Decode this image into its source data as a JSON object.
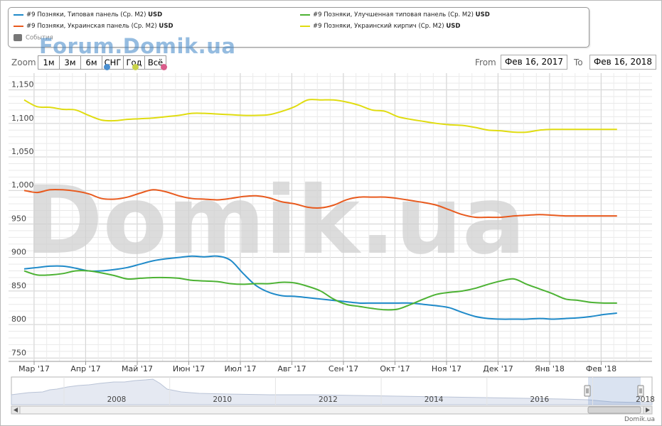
{
  "legend": {
    "items": [
      {
        "label": "#9 Позняки, Типовая панель (Ср. М2)",
        "unit": "USD",
        "color": "#1f8ac9"
      },
      {
        "label": "#9 Позняки, Улучшенная типовая панель (Ср. М2)",
        "unit": "USD",
        "color": "#4cb233"
      },
      {
        "label": "#9 Позняки, Украинская панель (Ср. М2)",
        "unit": "USD",
        "color": "#e85a1e"
      },
      {
        "label": "#9 Позняки, Украинский кирпич (Ср. М2)",
        "unit": "USD",
        "color": "#e0dc10"
      }
    ],
    "events_label": "События"
  },
  "watermark_top": "Forum.Domik.ua",
  "watermark_big": "Domik.ua",
  "zoom": {
    "label": "Zoom",
    "buttons": [
      "1м",
      "3м",
      "6м",
      "СНГ",
      "Год",
      "Всё"
    ]
  },
  "range": {
    "from_label": "From",
    "from_value": "Фев 16, 2017",
    "to_label": "To",
    "to_value": "Фев 16, 2018"
  },
  "credit": "Domik.ua",
  "chart_data": {
    "type": "line",
    "ylim": [
      745,
      1175
    ],
    "yticks": [
      750,
      800,
      850,
      900,
      950,
      1000,
      1050,
      1100,
      1150
    ],
    "ytick_labels": [
      "750",
      "800",
      "850",
      "900",
      "950",
      "1,000",
      "1,050",
      "1,100",
      "1,150"
    ],
    "x_labels": [
      "Мар '17",
      "Апр '17",
      "Май '17",
      "Июн '17",
      "Июл '17",
      "Авг '17",
      "Сен '17",
      "Окт '17",
      "Ноя '17",
      "Дек '17",
      "Янв '18",
      "Фев '18"
    ],
    "grid": true,
    "x": [
      0,
      0.25,
      0.5,
      0.75,
      1,
      1.25,
      1.5,
      1.75,
      2,
      2.25,
      2.5,
      2.75,
      3,
      3.25,
      3.5,
      3.75,
      4,
      4.25,
      4.5,
      4.75,
      5,
      5.25,
      5.5,
      5.75,
      6,
      6.25,
      6.5,
      6.75,
      7,
      7.25,
      7.5,
      7.75,
      8,
      8.25,
      8.5,
      8.75,
      9,
      9.25,
      9.5,
      9.75,
      10,
      10.25,
      10.5,
      10.75,
      11,
      11.25,
      11.5
    ],
    "series": [
      {
        "name": "#9 Позняки, Украинский кирпич (Ср. М2)",
        "color": "#e0dc10",
        "values": [
          1135,
          1125,
          1124,
          1121,
          1120,
          1112,
          1105,
          1104,
          1106,
          1107,
          1108,
          1110,
          1112,
          1115,
          1115,
          1114,
          1113,
          1112,
          1112,
          1113,
          1118,
          1125,
          1135,
          1135,
          1135,
          1132,
          1127,
          1120,
          1118,
          1110,
          1106,
          1103,
          1100,
          1098,
          1097,
          1094,
          1090,
          1089,
          1087,
          1087,
          1090,
          1091,
          1091,
          1091,
          1091,
          1091,
          1091
        ]
      },
      {
        "name": "#9 Позняки, Украинская панель (Ср. М2)",
        "color": "#e85a1e",
        "values": [
          1000,
          997,
          1001,
          1001,
          999,
          995,
          988,
          987,
          990,
          996,
          1001,
          998,
          992,
          988,
          987,
          986,
          988,
          991,
          992,
          989,
          983,
          980,
          975,
          974,
          978,
          986,
          990,
          990,
          990,
          988,
          985,
          982,
          978,
          971,
          964,
          960,
          960,
          960,
          962,
          963,
          964,
          963,
          962,
          962,
          962,
          962,
          962
        ]
      },
      {
        "name": "#9 Позняки, Типовая панель (Ср. М2)",
        "color": "#1f8ac9",
        "values": [
          883,
          885,
          887,
          887,
          884,
          880,
          880,
          882,
          885,
          890,
          895,
          898,
          900,
          902,
          901,
          902,
          896,
          876,
          858,
          848,
          843,
          842,
          840,
          838,
          836,
          834,
          832,
          832,
          832,
          832,
          832,
          830,
          828,
          825,
          818,
          812,
          809,
          808,
          808,
          808,
          809,
          808,
          809,
          810,
          812,
          815,
          817
        ]
      },
      {
        "name": "#9 Позняки, Улучшенная типовая панель (Ср. М2)",
        "color": "#4cb233",
        "values": [
          880,
          874,
          874,
          876,
          880,
          880,
          877,
          873,
          868,
          869,
          870,
          870,
          869,
          866,
          865,
          864,
          861,
          860,
          861,
          861,
          863,
          862,
          857,
          850,
          838,
          830,
          827,
          824,
          822,
          823,
          830,
          838,
          845,
          848,
          850,
          854,
          860,
          865,
          868,
          860,
          853,
          846,
          838,
          836,
          833,
          832,
          832
        ]
      }
    ]
  },
  "navigator": {
    "labels": [
      "2008",
      "2010",
      "2012",
      "2014",
      "2016",
      "2018"
    ]
  }
}
